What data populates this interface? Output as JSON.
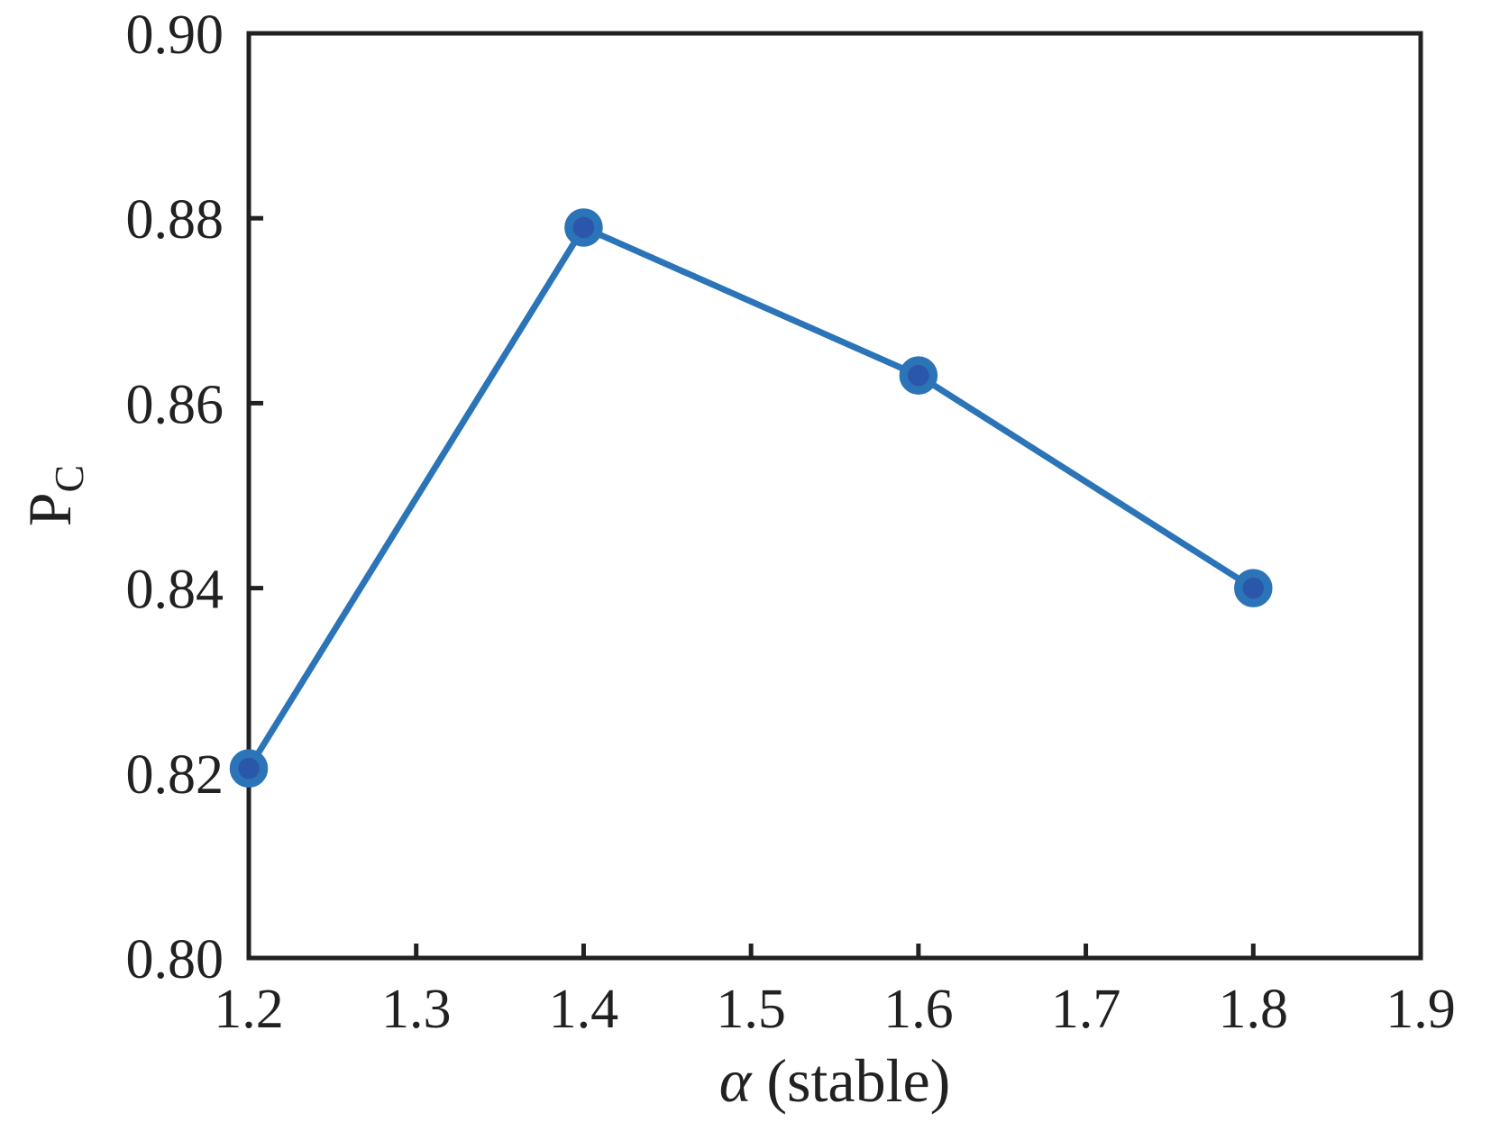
{
  "chart_data": {
    "type": "line",
    "x": [
      1.2,
      1.4,
      1.6,
      1.8
    ],
    "y": [
      0.8205,
      0.879,
      0.863,
      0.84
    ],
    "title": "",
    "xlabel_italic": "α",
    "xlabel_regular": " (stable)",
    "ylabel_main": "P",
    "ylabel_sub": "C",
    "xlim": [
      1.2,
      1.9
    ],
    "ylim": [
      0.8,
      0.9
    ],
    "x_ticks": [
      1.2,
      1.3,
      1.4,
      1.5,
      1.6,
      1.7,
      1.8,
      1.9
    ],
    "x_tick_labels": [
      "1.2",
      "1.3",
      "1.4",
      "1.5",
      "1.6",
      "1.7",
      "1.8",
      "1.9"
    ],
    "y_ticks": [
      0.8,
      0.82,
      0.84,
      0.86,
      0.88,
      0.9
    ],
    "y_tick_labels": [
      "0.80",
      "0.82",
      "0.84",
      "0.86",
      "0.88",
      "0.90"
    ],
    "grid": false,
    "legend": "none",
    "colors": {
      "line": "#2b74b8",
      "marker_face": "#2a57a9",
      "marker_edge": "#2b74b8",
      "axis": "#212121",
      "background": "#ffffff"
    }
  }
}
